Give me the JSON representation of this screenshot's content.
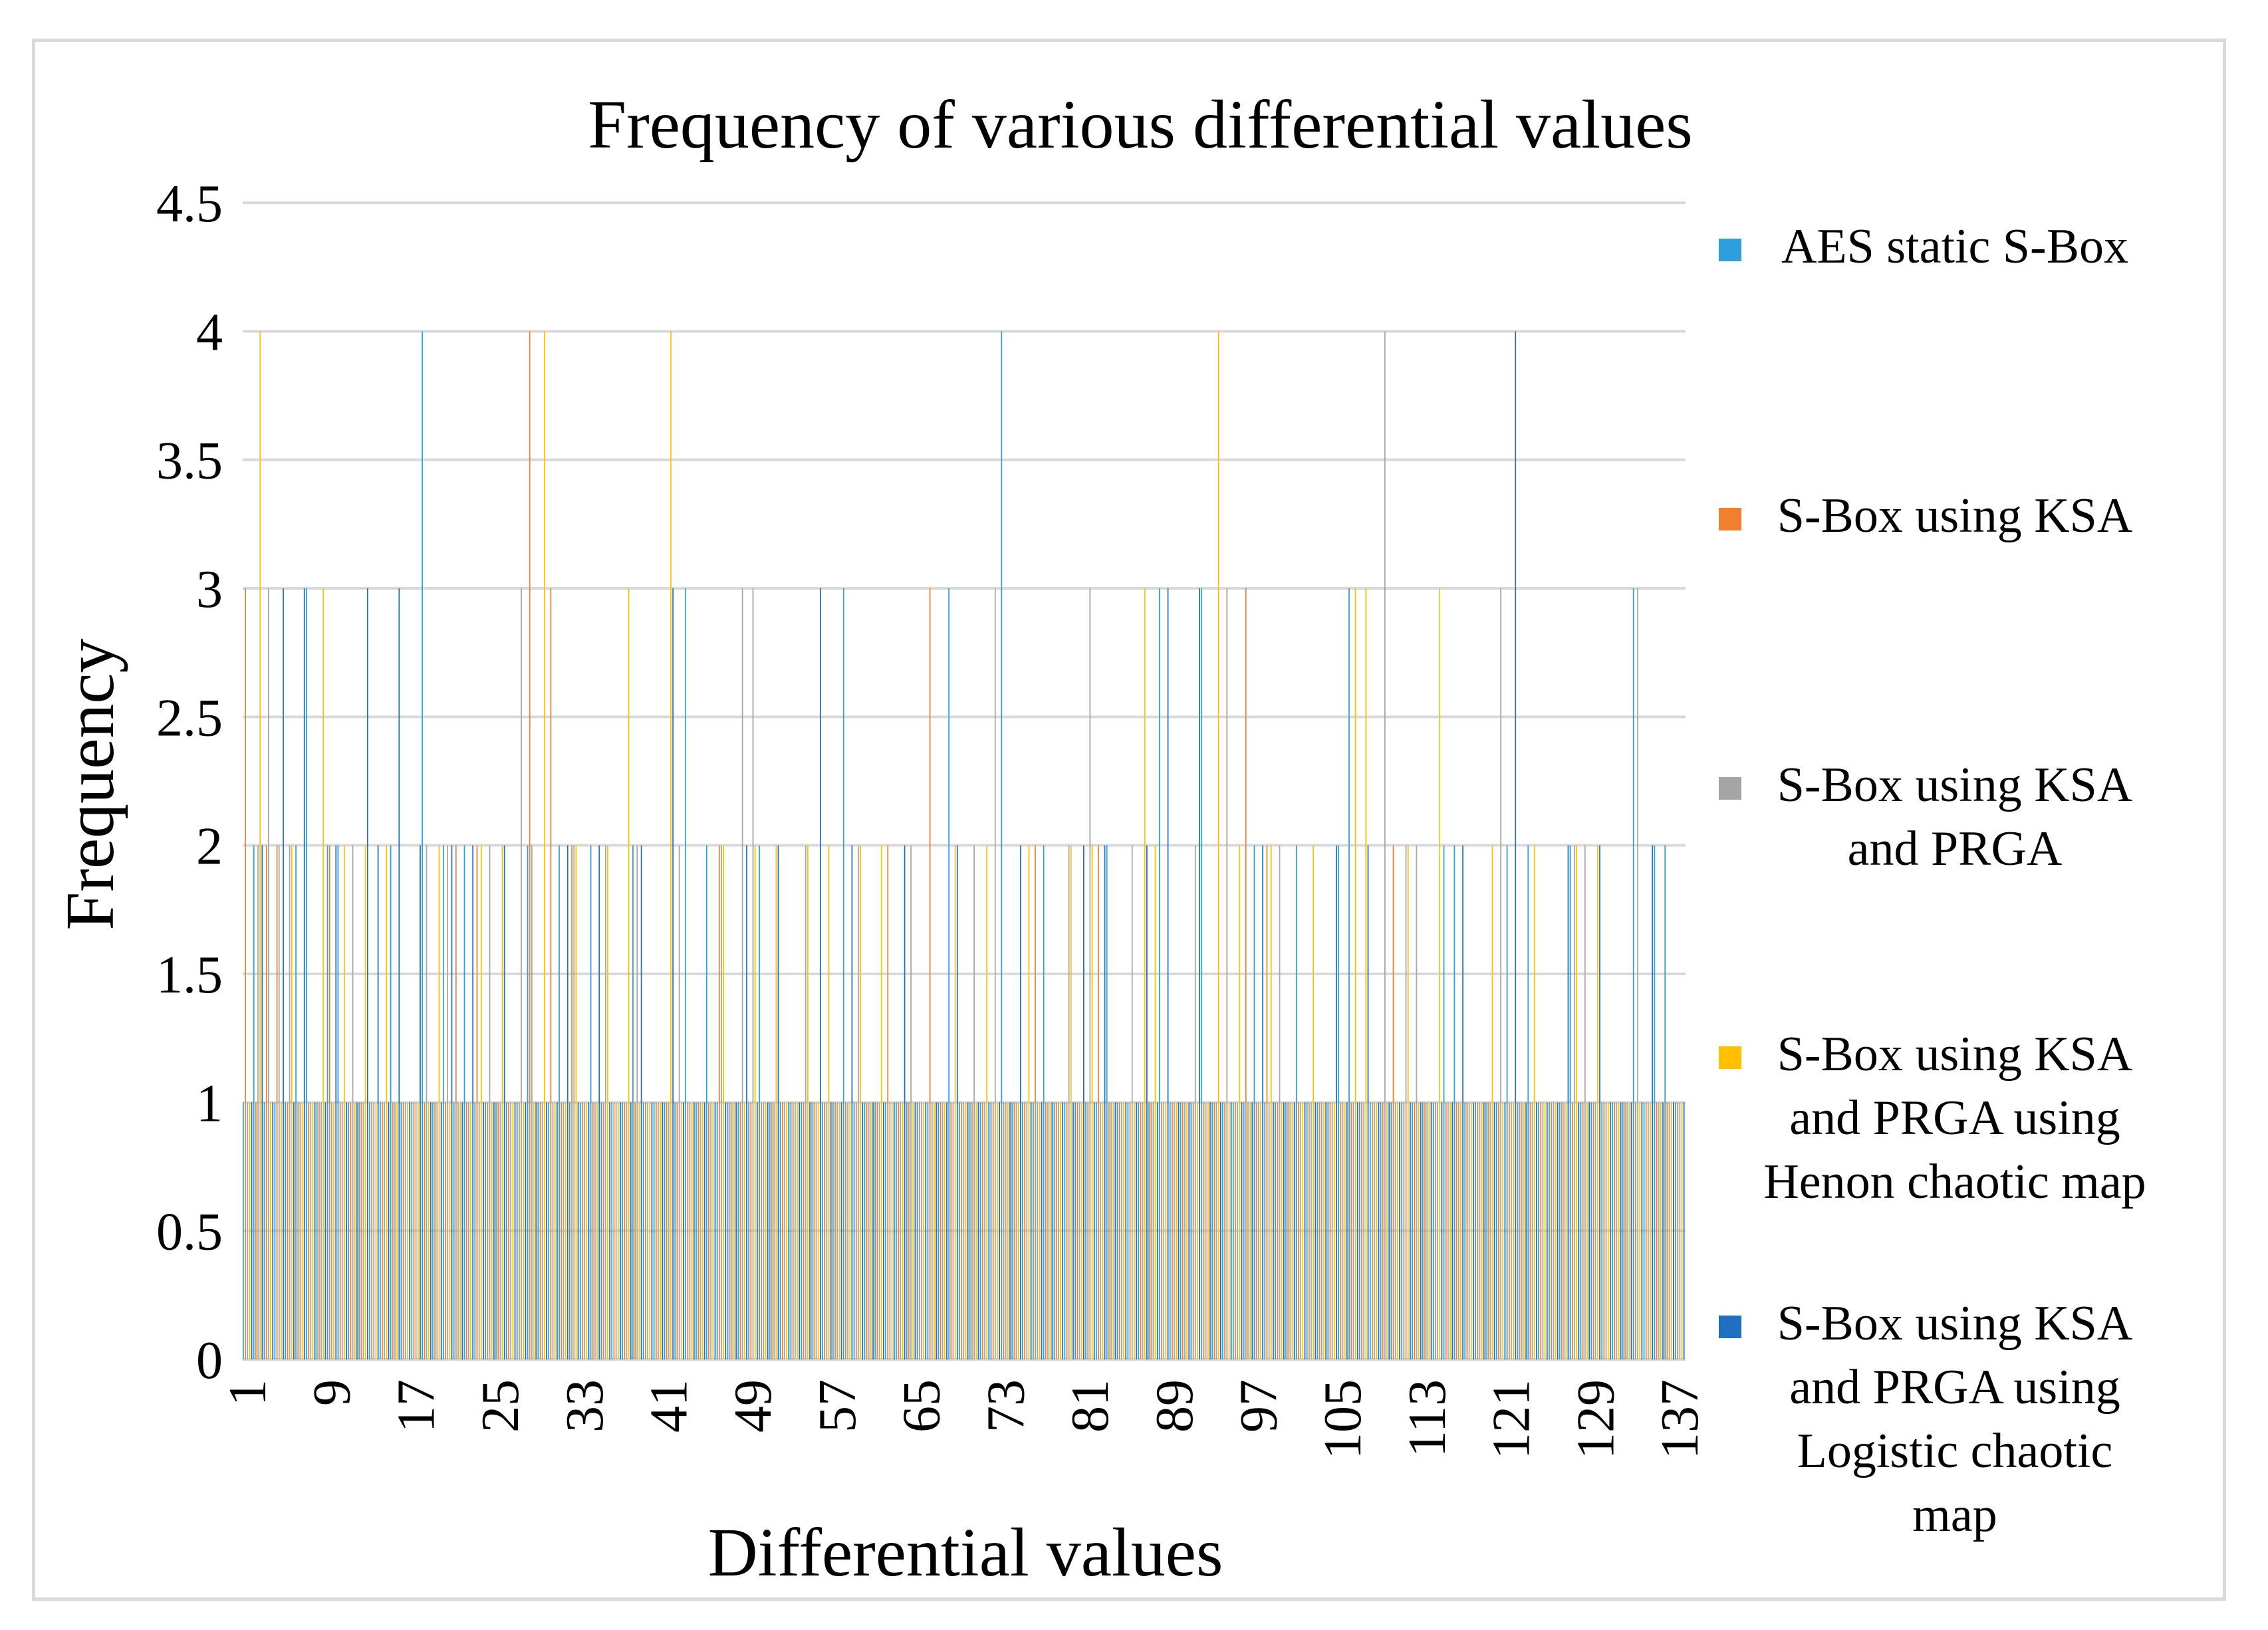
{
  "chart_data": {
    "type": "bar",
    "title": "Frequency of various differential values",
    "xlabel": "Differential values",
    "ylabel": "Frequency",
    "ylim": [
      0,
      4.5
    ],
    "yticks": [
      "0",
      "0.5",
      "1",
      "1.5",
      "2",
      "2.5",
      "3",
      "3.5",
      "4",
      "4.5"
    ],
    "x_tick_labels": [
      "1",
      "9",
      "17",
      "25",
      "33",
      "41",
      "49",
      "57",
      "65",
      "73",
      "81",
      "89",
      "97",
      "105",
      "113",
      "121",
      "129",
      "137"
    ],
    "categories_count": 137,
    "grid": true,
    "legend_position": "right",
    "series": [
      {
        "name": "AES static S-Box",
        "legend_lines": [
          "AES static S-Box"
        ],
        "color": "#2E9FDC",
        "values": [
          1,
          2,
          1,
          1,
          1,
          2,
          3,
          1,
          2,
          2,
          1,
          1,
          1,
          1,
          2,
          1,
          1,
          4,
          1,
          2,
          1,
          2,
          1,
          1,
          1,
          1,
          1,
          2,
          1,
          1,
          2,
          1,
          1,
          2,
          1,
          1,
          1,
          2,
          1,
          1,
          1,
          1,
          3,
          1,
          2,
          1,
          1,
          1,
          1,
          2,
          1,
          1,
          1,
          1,
          1,
          1,
          1,
          3,
          1,
          1,
          1,
          1,
          1,
          1,
          1,
          1,
          1,
          3,
          1,
          1,
          1,
          1,
          4,
          1,
          1,
          1,
          2,
          1,
          1,
          1,
          1,
          1,
          2,
          1,
          1,
          1,
          1,
          3,
          1,
          1,
          1,
          3,
          1,
          1,
          1,
          1,
          2,
          1,
          1,
          1,
          2,
          1,
          1,
          1,
          2,
          3,
          1,
          1,
          1,
          1,
          1,
          1,
          1,
          1,
          2,
          2,
          1,
          1,
          1,
          1,
          2,
          1,
          2,
          1,
          1,
          1,
          2,
          1,
          1,
          1,
          1,
          1,
          3,
          1,
          2,
          2,
          1
        ]
      },
      {
        "name": "S-Box using KSA",
        "legend_lines": [
          "S-Box using KSA"
        ],
        "color": "#F07F2F",
        "values": [
          3,
          1,
          2,
          2,
          1,
          1,
          1,
          1,
          2,
          1,
          1,
          1,
          1,
          1,
          1,
          1,
          1,
          1,
          1,
          1,
          2,
          1,
          2,
          1,
          1,
          1,
          1,
          4,
          1,
          3,
          1,
          2,
          1,
          1,
          1,
          1,
          1,
          1,
          1,
          1,
          1,
          1,
          1,
          1,
          1,
          2,
          1,
          1,
          1,
          1,
          1,
          1,
          1,
          1,
          1,
          1,
          1,
          1,
          1,
          1,
          1,
          2,
          1,
          1,
          1,
          3,
          1,
          1,
          1,
          1,
          1,
          1,
          1,
          1,
          1,
          2,
          1,
          1,
          1,
          1,
          1,
          2,
          1,
          1,
          1,
          1,
          1,
          1,
          1,
          1,
          1,
          1,
          1,
          1,
          1,
          3,
          1,
          2,
          1,
          1,
          1,
          1,
          1,
          1,
          1,
          1,
          1,
          1,
          1,
          2,
          1,
          1,
          1,
          1,
          1,
          1,
          1,
          1,
          1,
          1,
          1,
          1,
          1,
          1,
          1,
          1,
          1,
          1,
          1,
          1,
          1,
          1,
          1,
          1,
          1,
          1,
          1
        ]
      },
      {
        "name": "S-Box using KSA and PRGA",
        "legend_lines": [
          "S-Box using KSA",
          "and PRGA"
        ],
        "color": "#A5A5A5",
        "values": [
          1,
          2,
          3,
          2,
          2,
          1,
          1,
          1,
          1,
          1,
          2,
          1,
          1,
          1,
          1,
          1,
          1,
          2,
          1,
          2,
          1,
          1,
          1,
          2,
          1,
          1,
          3,
          2,
          1,
          1,
          1,
          2,
          1,
          1,
          2,
          1,
          1,
          2,
          1,
          1,
          1,
          2,
          1,
          1,
          1,
          2,
          1,
          3,
          3,
          1,
          1,
          1,
          1,
          2,
          1,
          1,
          1,
          1,
          2,
          1,
          1,
          1,
          1,
          2,
          1,
          1,
          1,
          1,
          1,
          2,
          1,
          3,
          1,
          1,
          1,
          1,
          1,
          1,
          2,
          1,
          3,
          1,
          1,
          1,
          2,
          1,
          1,
          1,
          1,
          1,
          2,
          1,
          1,
          3,
          1,
          1,
          1,
          1,
          2,
          1,
          1,
          1,
          1,
          1,
          1,
          1,
          1,
          1,
          4,
          1,
          2,
          2,
          1,
          1,
          1,
          1,
          1,
          1,
          1,
          3,
          1,
          1,
          1,
          1,
          1,
          1,
          2,
          2,
          1,
          1,
          1,
          1,
          3,
          1,
          1,
          1,
          1
        ]
      },
      {
        "name": "S-Box using KSA and PRGA using Henon chaotic map",
        "legend_lines": [
          "S-Box using KSA",
          "and PRGA using",
          "Henon chaotic map"
        ],
        "color": "#FFC000",
        "values": [
          1,
          4,
          1,
          1,
          2,
          1,
          1,
          3,
          1,
          2,
          1,
          2,
          1,
          2,
          1,
          1,
          1,
          1,
          2,
          1,
          1,
          1,
          2,
          1,
          2,
          1,
          1,
          1,
          4,
          1,
          1,
          2,
          1,
          1,
          2,
          1,
          3,
          1,
          1,
          1,
          4,
          1,
          1,
          1,
          1,
          2,
          1,
          1,
          2,
          1,
          2,
          1,
          1,
          2,
          1,
          2,
          1,
          1,
          2,
          1,
          2,
          1,
          1,
          1,
          1,
          1,
          1,
          2,
          1,
          1,
          2,
          1,
          1,
          1,
          2,
          1,
          1,
          1,
          2,
          1,
          2,
          1,
          1,
          1,
          1,
          3,
          2,
          1,
          1,
          1,
          1,
          1,
          4,
          1,
          2,
          1,
          1,
          2,
          1,
          1,
          1,
          2,
          1,
          1,
          1,
          3,
          3,
          1,
          1,
          1,
          2,
          1,
          1,
          3,
          1,
          1,
          1,
          1,
          2,
          1,
          1,
          1,
          2,
          1,
          1,
          1,
          2,
          1,
          2,
          1,
          1,
          1,
          1,
          1,
          1,
          1,
          1
        ]
      },
      {
        "name": "S-Box using KSA and PRGA using Logistic chaotic map",
        "legend_lines": [
          "S-Box using KSA",
          "and PRGA using",
          "Logistic chaotic",
          "map"
        ],
        "color": "#1F70C1",
        "values": [
          1,
          2,
          1,
          3,
          1,
          3,
          1,
          1,
          2,
          1,
          1,
          3,
          2,
          1,
          3,
          1,
          2,
          1,
          1,
          2,
          1,
          2,
          1,
          1,
          2,
          1,
          1,
          1,
          1,
          1,
          2,
          1,
          1,
          2,
          1,
          1,
          1,
          2,
          1,
          1,
          3,
          1,
          1,
          1,
          1,
          1,
          1,
          2,
          1,
          1,
          2,
          1,
          1,
          1,
          3,
          1,
          1,
          2,
          1,
          1,
          1,
          1,
          2,
          1,
          1,
          1,
          1,
          2,
          1,
          1,
          1,
          1,
          1,
          2,
          1,
          1,
          1,
          1,
          1,
          2,
          1,
          2,
          1,
          1,
          1,
          2,
          1,
          3,
          1,
          1,
          3,
          1,
          1,
          1,
          1,
          1,
          2,
          1,
          1,
          1,
          1,
          1,
          1,
          2,
          1,
          1,
          2,
          1,
          1,
          1,
          1,
          1,
          1,
          1,
          1,
          2,
          1,
          1,
          1,
          1,
          4,
          1,
          1,
          1,
          1,
          2,
          1,
          1,
          2,
          1,
          1,
          1,
          1,
          2,
          1,
          1,
          1
        ]
      }
    ]
  }
}
